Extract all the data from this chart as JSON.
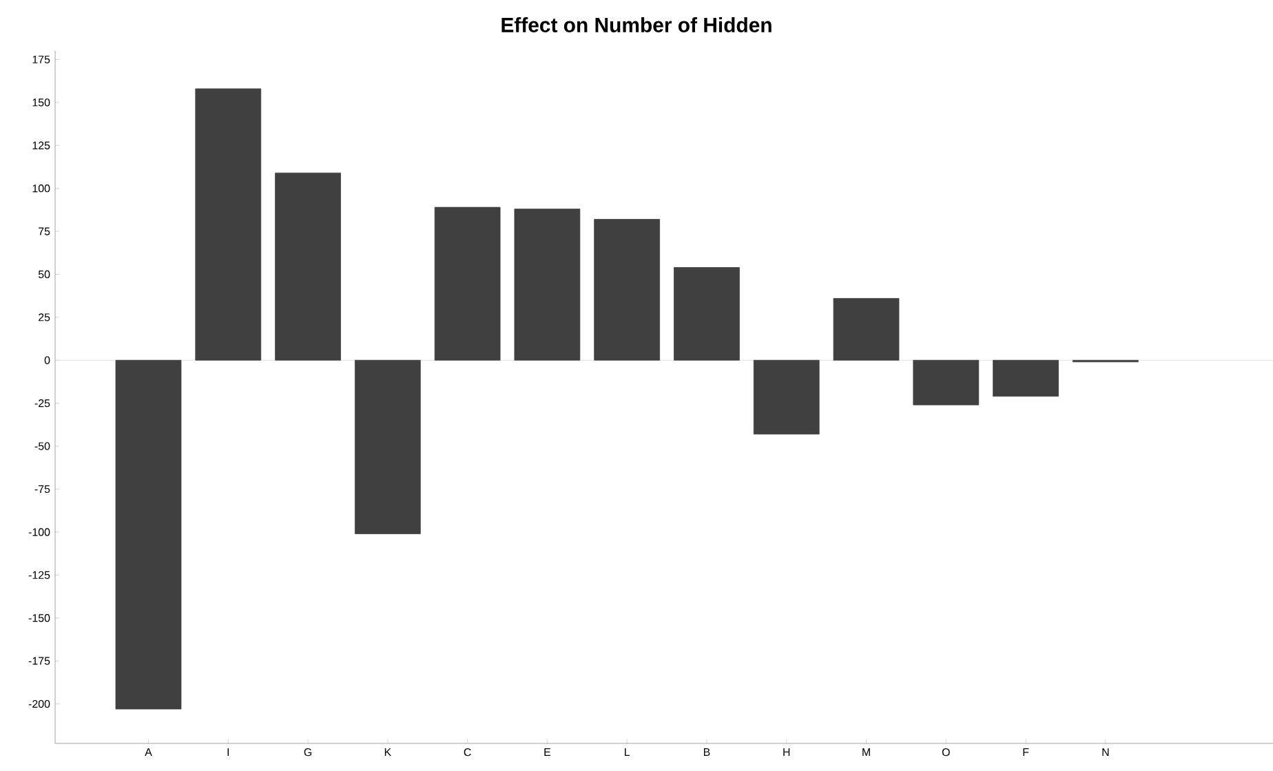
{
  "chart_data": {
    "type": "bar",
    "title": "Effect on Number of Hidden",
    "categories": [
      "A",
      "I",
      "G",
      "K",
      "C",
      "E",
      "L",
      "B",
      "H",
      "M",
      "O",
      "F",
      "N"
    ],
    "values": [
      -203,
      158,
      109,
      -101,
      89,
      88,
      82,
      54,
      -43,
      36,
      -26,
      -21,
      -1
    ],
    "color": "#404040",
    "ylim": [
      -223,
      180
    ],
    "yticks": [
      -200,
      -175,
      -150,
      -125,
      -100,
      -75,
      -50,
      -25,
      0,
      25,
      50,
      75,
      100,
      125,
      150,
      175
    ],
    "ref_lines": [
      {
        "axis": "y",
        "value": 0,
        "color": "#d8d8d8"
      }
    ],
    "grid": false
  }
}
